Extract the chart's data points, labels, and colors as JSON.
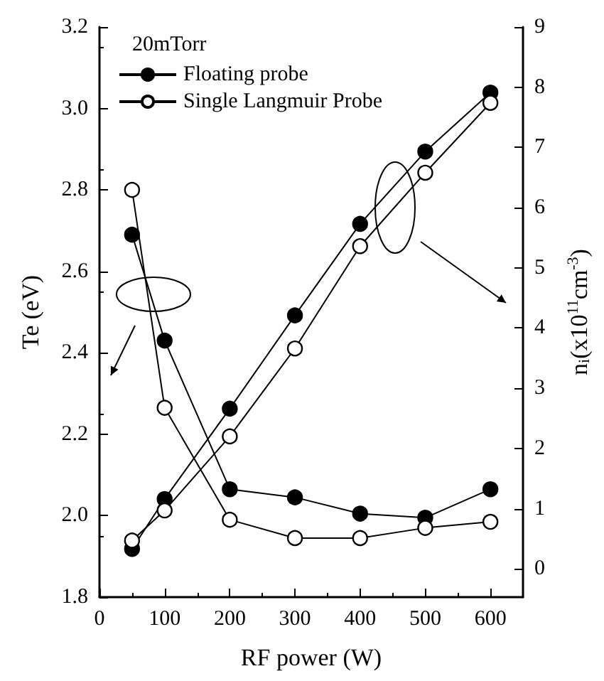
{
  "chart_data": {
    "type": "line",
    "x": [
      50,
      100,
      200,
      300,
      400,
      500,
      600
    ],
    "xlabel": "RF power (W)",
    "ylabel": "Te (eV)",
    "y2label": "n$_{i}$(x10$^{11}$cm$^{-3}$)",
    "xlim": [
      0,
      650
    ],
    "xticks": [
      0,
      100,
      200,
      300,
      400,
      500,
      600
    ],
    "ylim": [
      1.8,
      3.2
    ],
    "yticks": [
      1.8,
      {
        "value": 2,
        "label": "2.0"
      },
      2.2,
      2.4,
      2.6,
      2.8,
      {
        "value": 3,
        "label": "3.0"
      },
      3.2
    ],
    "y2lim": [
      -0.47,
      9
    ],
    "y2ticks": [
      0,
      1,
      2,
      3,
      4,
      5,
      6,
      7,
      8,
      9
    ],
    "marker": "circle",
    "line_style": "solid",
    "grid": false,
    "legend": "top left",
    "annotations": [
      "20mTorr"
    ],
    "series": [
      {
        "name": "Floating probe",
        "color": "#000000",
        "values": [
          2.69,
          2.43,
          2.065,
          2.045,
          2.005,
          1.995,
          2.065
        ]
      },
      {
        "name": "Single Langmuir Probe",
        "color": "#ffffff",
        "values": [
          2.8,
          2.265,
          1.99,
          1.945,
          1.945,
          1.97,
          1.985
        ]
      },
      {
        "color": "#000000",
        "axis": "y2",
        "values": [
          0.33,
          1.16,
          2.66,
          4.21,
          5.73,
          6.93,
          7.91
        ]
      },
      {
        "color": "#ffffff",
        "axis": "y2",
        "values": [
          0.47,
          0.97,
          2.2,
          3.66,
          5.36,
          6.58,
          7.74
        ]
      }
    ]
  }
}
